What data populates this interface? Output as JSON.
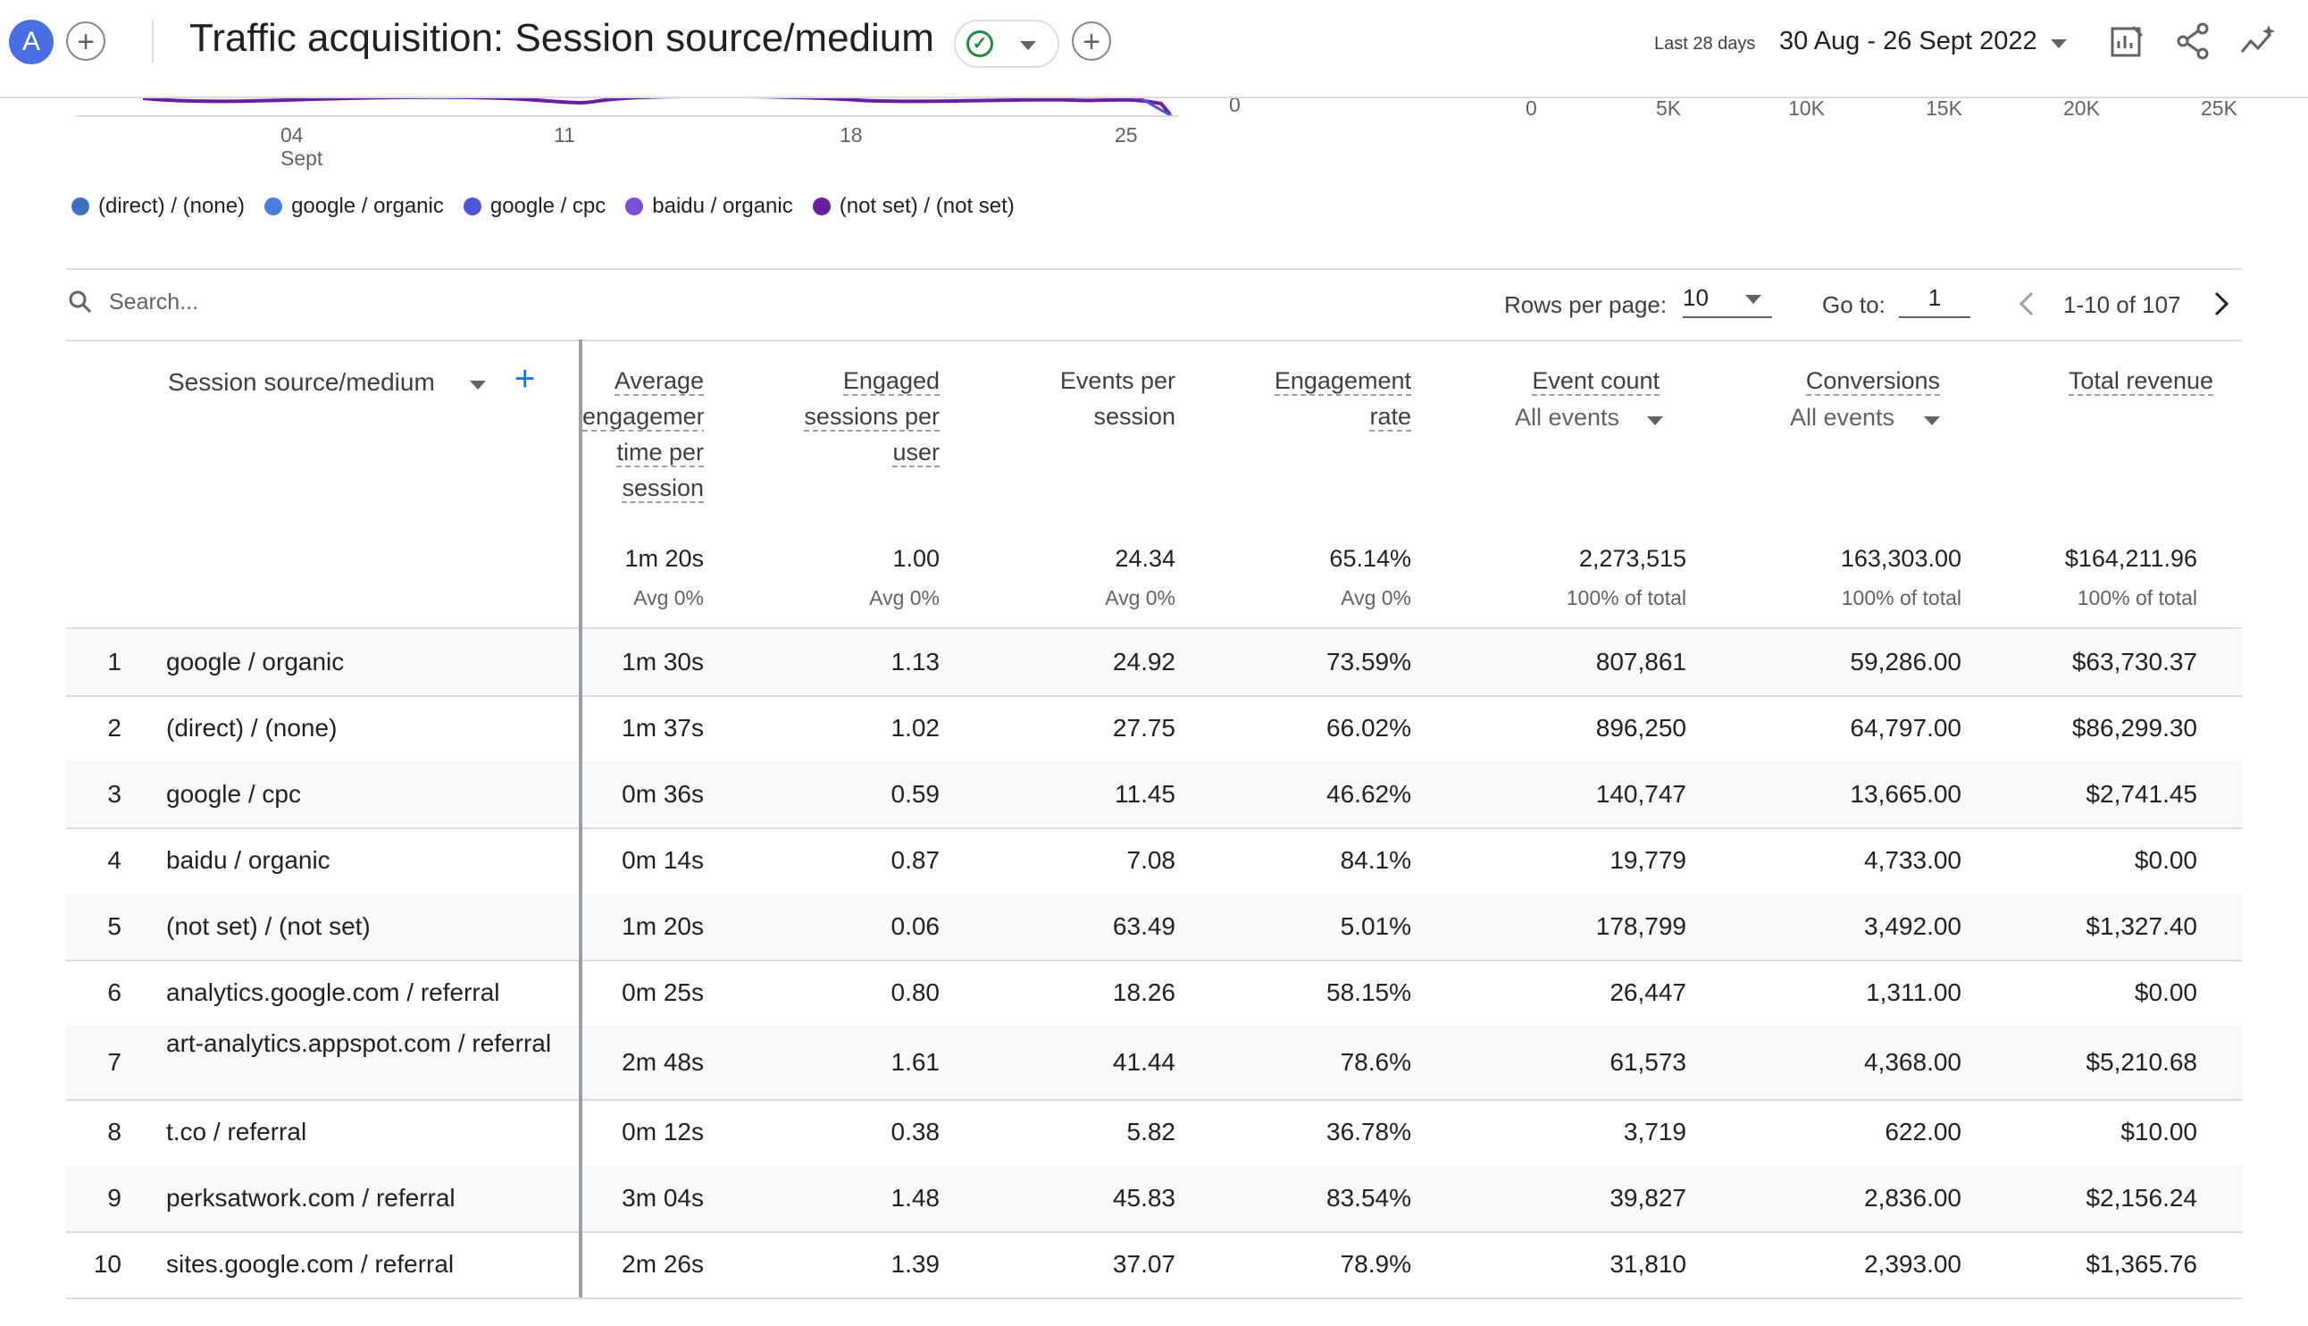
{
  "header": {
    "avatar_letter": "A",
    "title": "Traffic acquisition: Session source/medium",
    "date_hint": "Last 28 days",
    "date_range": "30 Aug - 26 Sept 2022",
    "icons": [
      "add-circle-icon",
      "check-circle-icon",
      "chevron-down-icon",
      "add-circle-icon",
      "customize-report-icon",
      "share-icon",
      "insights-icon"
    ]
  },
  "chart": {
    "x_ticks": [
      "04",
      "11",
      "18",
      "25"
    ],
    "x_month": "Sept",
    "bar_axis_zero": "0",
    "bar_ticks": [
      "0",
      "5K",
      "10K",
      "15K",
      "20K",
      "25K"
    ],
    "legend": [
      {
        "label": "(direct) / (none)",
        "color": "#3b72c4"
      },
      {
        "label": "google / organic",
        "color": "#4a7fe0"
      },
      {
        "label": "google / cpc",
        "color": "#4f55d8"
      },
      {
        "label": "baidu / organic",
        "color": "#7b4fd8"
      },
      {
        "label": "(not set) / (not set)",
        "color": "#6b1fa0"
      }
    ]
  },
  "toolbar": {
    "search_placeholder": "Search...",
    "rows_label": "Rows per page:",
    "rows_value": "10",
    "goto_label": "Go to:",
    "goto_value": "1",
    "range": "1-10 of 107"
  },
  "table": {
    "dimension_header": "Session source/medium",
    "columns": [
      {
        "lines": [
          "Average",
          "engagement",
          "time per",
          "session"
        ]
      },
      {
        "lines": [
          "Engaged",
          "sessions per",
          "user"
        ]
      },
      {
        "lines": [
          "Events per",
          "session"
        ]
      },
      {
        "lines": [
          "Engagement",
          "rate"
        ]
      },
      {
        "lines": [
          "Event count"
        ],
        "sub": "All events"
      },
      {
        "lines": [
          "Conversions"
        ],
        "sub": "All events"
      },
      {
        "lines": [
          "Total revenue"
        ]
      }
    ],
    "totals": [
      {
        "value": "1m 20s",
        "sub": "Avg 0%"
      },
      {
        "value": "1.00",
        "sub": "Avg 0%"
      },
      {
        "value": "24.34",
        "sub": "Avg 0%"
      },
      {
        "value": "65.14%",
        "sub": "Avg 0%"
      },
      {
        "value": "2,273,515",
        "sub": "100% of total"
      },
      {
        "value": "163,303.00",
        "sub": "100% of total"
      },
      {
        "value": "$164,211.96",
        "sub": "100% of total"
      }
    ],
    "rows": [
      {
        "index": "1",
        "source": "google / organic",
        "values": [
          "1m 30s",
          "1.13",
          "24.92",
          "73.59%",
          "807,861",
          "59,286.00",
          "$63,730.37"
        ]
      },
      {
        "index": "2",
        "source": "(direct) / (none)",
        "values": [
          "1m 37s",
          "1.02",
          "27.75",
          "66.02%",
          "896,250",
          "64,797.00",
          "$86,299.30"
        ]
      },
      {
        "index": "3",
        "source": "google / cpc",
        "values": [
          "0m 36s",
          "0.59",
          "11.45",
          "46.62%",
          "140,747",
          "13,665.00",
          "$2,741.45"
        ]
      },
      {
        "index": "4",
        "source": "baidu / organic",
        "values": [
          "0m 14s",
          "0.87",
          "7.08",
          "84.1%",
          "19,779",
          "4,733.00",
          "$0.00"
        ]
      },
      {
        "index": "5",
        "source": "(not set) / (not set)",
        "values": [
          "1m 20s",
          "0.06",
          "63.49",
          "5.01%",
          "178,799",
          "3,492.00",
          "$1,327.40"
        ]
      },
      {
        "index": "6",
        "source": "analytics.google.com / referral",
        "values": [
          "0m 25s",
          "0.80",
          "18.26",
          "58.15%",
          "26,447",
          "1,311.00",
          "$0.00"
        ]
      },
      {
        "index": "7",
        "source": "art-analytics.appspot.com / referral",
        "values": [
          "2m 48s",
          "1.61",
          "41.44",
          "78.6%",
          "61,573",
          "4,368.00",
          "$5,210.68"
        ]
      },
      {
        "index": "8",
        "source": "t.co / referral",
        "values": [
          "0m 12s",
          "0.38",
          "5.82",
          "36.78%",
          "3,719",
          "622.00",
          "$10.00"
        ]
      },
      {
        "index": "9",
        "source": "perksatwork.com / referral",
        "values": [
          "3m 04s",
          "1.48",
          "45.83",
          "83.54%",
          "39,827",
          "2,836.00",
          "$2,156.24"
        ]
      },
      {
        "index": "10",
        "source": "sites.google.com / referral",
        "values": [
          "2m 26s",
          "1.39",
          "37.07",
          "78.9%",
          "31,810",
          "2,393.00",
          "$1,365.76"
        ]
      }
    ]
  }
}
